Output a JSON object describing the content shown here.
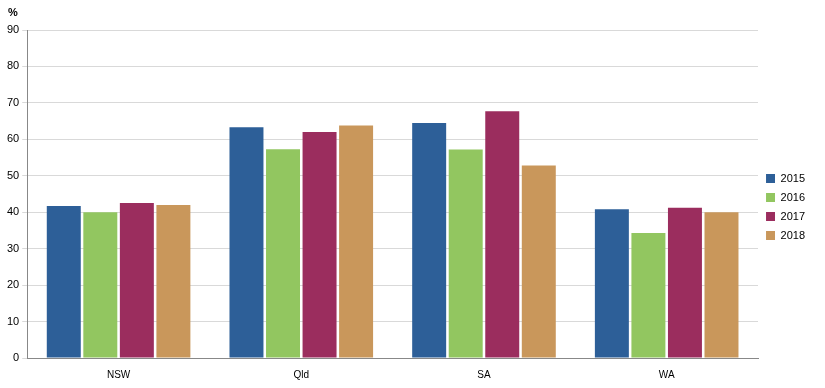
{
  "chart_data": {
    "type": "bar",
    "y_label": "%",
    "categories": [
      "NSW",
      "Qld",
      "SA",
      "WA"
    ],
    "series": [
      {
        "name": "2015",
        "color": "#2d5f98",
        "values": [
          41.7,
          63.3,
          64.5,
          40.8
        ]
      },
      {
        "name": "2016",
        "color": "#92c660",
        "values": [
          40.0,
          57.3,
          57.2,
          34.3
        ]
      },
      {
        "name": "2017",
        "color": "#9b2d5e",
        "values": [
          42.5,
          62.0,
          67.7,
          41.2
        ]
      },
      {
        "name": "2018",
        "color": "#c9975b",
        "values": [
          42.0,
          63.8,
          52.8,
          40.0
        ]
      }
    ],
    "ylim": [
      0,
      90
    ],
    "yticks": [
      0,
      10,
      20,
      30,
      40,
      50,
      60,
      70,
      80,
      90
    ],
    "grid": true,
    "legend": "right"
  }
}
